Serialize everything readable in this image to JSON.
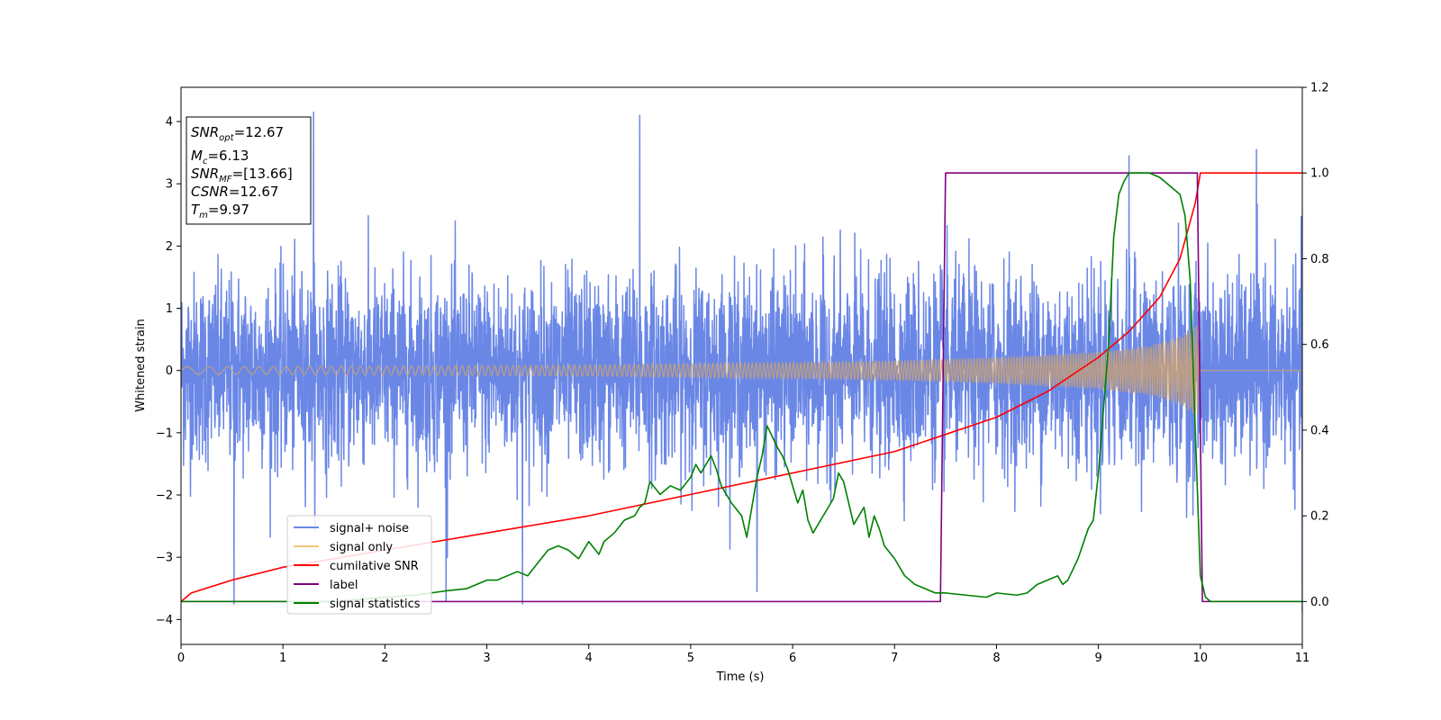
{
  "chart_data": {
    "type": "line",
    "xlabel": "Time (s)",
    "ylabel": "Whitened strain",
    "xlim": [
      0,
      11
    ],
    "ylim": [
      -4.4,
      4.55
    ],
    "y2lim": [
      -0.1,
      1.2
    ],
    "xticks": [
      "0",
      "1",
      "2",
      "3",
      "4",
      "5",
      "6",
      "7",
      "8",
      "9",
      "10",
      "11"
    ],
    "yticks": [
      "−4",
      "−3",
      "−2",
      "−1",
      "0",
      "1",
      "2",
      "3",
      "4"
    ],
    "y2ticks": [
      "0.0",
      "0.2",
      "0.4",
      "0.6",
      "0.8",
      "1.0",
      "1.2"
    ],
    "grid": false,
    "legend_position": "lower-left",
    "info_box": {
      "snr_opt": {
        "sym": "SNR",
        "sub": "opt",
        "val": "=12.67"
      },
      "mc": {
        "sym": "M",
        "sub": "c",
        "val": "=6.13"
      },
      "snr_mf": {
        "sym": "SNR",
        "sub": "MF",
        "val": "=[13.66]"
      },
      "csnr": {
        "sym": "CSNR",
        "val": "=12.67"
      },
      "tm": {
        "sym": "T",
        "sub": "m",
        "val": "=9.97"
      }
    },
    "series": [
      {
        "name": "signal+ noise",
        "axis": "left",
        "color": "#6a87e6",
        "description_values": {
          "noise_std": 0.75,
          "spikes": [
            [
              1.3,
              4.15
            ],
            [
              4.5,
              4.1
            ],
            [
              0.52,
              -3.75
            ],
            [
              5.65,
              -3.55
            ],
            [
              9.3,
              3.45
            ],
            [
              10.55,
              3.55
            ],
            [
              11.0,
              -3.9
            ],
            [
              3.35,
              -3.75
            ],
            [
              2.6,
              -3.7
            ]
          ]
        }
      },
      {
        "name": "signal only",
        "axis": "left",
        "color": "#f5c27a",
        "envelope": {
          "t": [
            0,
            2,
            4,
            6,
            7,
            8,
            9,
            9.5,
            9.8,
            9.97,
            10.0,
            11
          ],
          "amp": [
            0.06,
            0.07,
            0.09,
            0.13,
            0.16,
            0.21,
            0.3,
            0.4,
            0.55,
            0.75,
            0.0,
            0.0
          ]
        }
      },
      {
        "name": "cumilative SNR",
        "axis": "right",
        "color": "#ff0000",
        "x": [
          0,
          0.1,
          0.5,
          1,
          2,
          3,
          4,
          5,
          6,
          7,
          7.5,
          8,
          8.5,
          9,
          9.3,
          9.6,
          9.8,
          9.95,
          10.0,
          11
        ],
        "y": [
          0.0,
          0.02,
          0.05,
          0.08,
          0.12,
          0.16,
          0.2,
          0.25,
          0.3,
          0.35,
          0.39,
          0.43,
          0.49,
          0.57,
          0.63,
          0.71,
          0.8,
          0.93,
          1.0,
          1.0
        ]
      },
      {
        "name": "label",
        "axis": "right",
        "color": "#800080",
        "x": [
          0,
          7.45,
          7.5,
          9.97,
          10.02,
          11
        ],
        "y": [
          0,
          0,
          1,
          1,
          0,
          0
        ]
      },
      {
        "name": "signal statistics",
        "axis": "right",
        "color": "#008000",
        "x": [
          0,
          0.5,
          1,
          1.5,
          2,
          2.3,
          2.6,
          2.8,
          2.9,
          3.0,
          3.1,
          3.2,
          3.3,
          3.4,
          3.5,
          3.6,
          3.7,
          3.8,
          3.9,
          4.0,
          4.1,
          4.15,
          4.25,
          4.35,
          4.45,
          4.5,
          4.55,
          4.6,
          4.7,
          4.8,
          4.9,
          5.0,
          5.05,
          5.1,
          5.2,
          5.25,
          5.3,
          5.4,
          5.5,
          5.55,
          5.6,
          5.65,
          5.7,
          5.75,
          5.85,
          5.9,
          5.95,
          6.05,
          6.1,
          6.15,
          6.2,
          6.3,
          6.4,
          6.45,
          6.5,
          6.6,
          6.7,
          6.75,
          6.8,
          6.85,
          6.9,
          7.0,
          7.1,
          7.2,
          7.3,
          7.4,
          7.5,
          7.7,
          7.9,
          8.0,
          8.2,
          8.3,
          8.4,
          8.5,
          8.6,
          8.65,
          8.7,
          8.8,
          8.9,
          8.95,
          9.0,
          9.05,
          9.1,
          9.15,
          9.2,
          9.25,
          9.3,
          9.35,
          9.4,
          9.5,
          9.6,
          9.7,
          9.8,
          9.85,
          9.9,
          9.95,
          10.0,
          10.05,
          10.1,
          10.5,
          11.0
        ],
        "y": [
          0.0,
          0.0,
          0.0,
          0.0,
          0.01,
          0.015,
          0.025,
          0.03,
          0.04,
          0.05,
          0.05,
          0.06,
          0.07,
          0.06,
          0.09,
          0.12,
          0.13,
          0.12,
          0.1,
          0.14,
          0.11,
          0.14,
          0.16,
          0.19,
          0.2,
          0.22,
          0.23,
          0.28,
          0.25,
          0.27,
          0.26,
          0.29,
          0.32,
          0.3,
          0.34,
          0.31,
          0.27,
          0.23,
          0.2,
          0.15,
          0.22,
          0.29,
          0.34,
          0.41,
          0.36,
          0.34,
          0.31,
          0.23,
          0.26,
          0.19,
          0.16,
          0.2,
          0.24,
          0.3,
          0.28,
          0.18,
          0.22,
          0.15,
          0.2,
          0.17,
          0.13,
          0.1,
          0.06,
          0.04,
          0.03,
          0.02,
          0.02,
          0.015,
          0.01,
          0.02,
          0.015,
          0.02,
          0.04,
          0.05,
          0.06,
          0.04,
          0.05,
          0.1,
          0.17,
          0.19,
          0.3,
          0.45,
          0.6,
          0.85,
          0.95,
          0.98,
          1.0,
          1.0,
          1.0,
          1.0,
          0.99,
          0.97,
          0.95,
          0.9,
          0.75,
          0.4,
          0.06,
          0.01,
          0.0,
          0.0,
          0.0
        ]
      }
    ]
  }
}
